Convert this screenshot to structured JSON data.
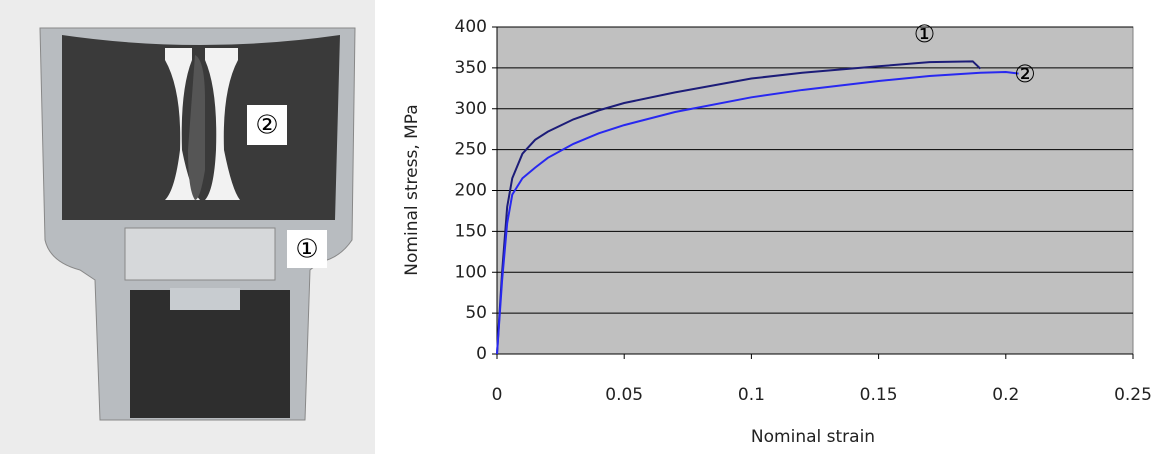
{
  "photo": {
    "labels": [
      "②",
      "①"
    ]
  },
  "chart_data": {
    "type": "line",
    "xlabel": "Nominal strain",
    "ylabel": "Nominal stress,  MPa",
    "xlim": [
      0,
      0.25
    ],
    "xticks": [
      0,
      0.05,
      0.1,
      0.15,
      0.2,
      0.25
    ],
    "ylim": [
      0,
      400
    ],
    "yticks": [
      0,
      50,
      100,
      150,
      200,
      250,
      300,
      350,
      400
    ],
    "grid": true,
    "background": "#c0c0c0",
    "series": [
      {
        "name": "①",
        "color": "#1c1c78",
        "x": [
          0,
          0.002,
          0.004,
          0.006,
          0.01,
          0.015,
          0.02,
          0.03,
          0.04,
          0.05,
          0.07,
          0.1,
          0.12,
          0.15,
          0.17,
          0.187,
          0.19
        ],
        "values": [
          0,
          100,
          180,
          215,
          245,
          262,
          272,
          287,
          298,
          307,
          320,
          337,
          344,
          352,
          357,
          358,
          349
        ]
      },
      {
        "name": "②",
        "color": "#2828f0",
        "x": [
          0,
          0.002,
          0.004,
          0.006,
          0.01,
          0.015,
          0.02,
          0.03,
          0.04,
          0.05,
          0.07,
          0.1,
          0.12,
          0.15,
          0.17,
          0.19,
          0.2,
          0.205
        ],
        "values": [
          0,
          90,
          160,
          195,
          215,
          228,
          240,
          257,
          270,
          280,
          296,
          314,
          323,
          334,
          340,
          344,
          345,
          343
        ]
      }
    ],
    "annotations": [
      {
        "text": "①",
        "x": 0.168,
        "y": 390
      },
      {
        "text": "②",
        "x": 0.2075,
        "y": 341
      }
    ]
  }
}
